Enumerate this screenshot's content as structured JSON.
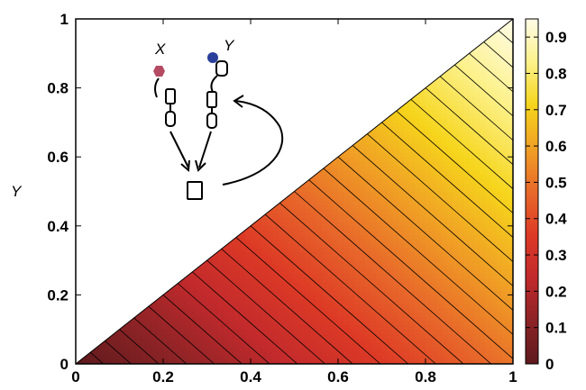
{
  "chart_data": {
    "type": "heatmap",
    "title": "",
    "xlabel": "",
    "ylabel": "Y",
    "xlim": [
      0,
      1
    ],
    "ylim": [
      0,
      1
    ],
    "x_ticks": [
      "0",
      "0.2",
      "0.4",
      "0.6",
      "0.8",
      "1"
    ],
    "y_ticks": [
      "0",
      "0.2",
      "0.4",
      "0.6",
      "0.8",
      "1"
    ],
    "colorbar": {
      "range": [
        0,
        0.95
      ],
      "ticks": [
        "0",
        "0.1",
        "0.2",
        "0.3",
        "0.4",
        "0.5",
        "0.6",
        "0.7",
        "0.8",
        "0.9"
      ],
      "colormap": [
        "#5e1a1d",
        "#8c2326",
        "#c22a2c",
        "#dd3a26",
        "#e8692a",
        "#f0a025",
        "#f6d51c",
        "#fcf18a",
        "#fffce8"
      ]
    },
    "domain": "region y <= x, blank above the diagonal",
    "contour_levels": 30,
    "value_corners": {
      "x0_y0": 0.0,
      "x1_y0": 0.5,
      "x1_y1": 0.95
    },
    "schematic": {
      "label_x": "X",
      "label_y": "Y",
      "x_marker_color": "#b54a63",
      "y_marker_color": "#2a3f9a"
    }
  }
}
